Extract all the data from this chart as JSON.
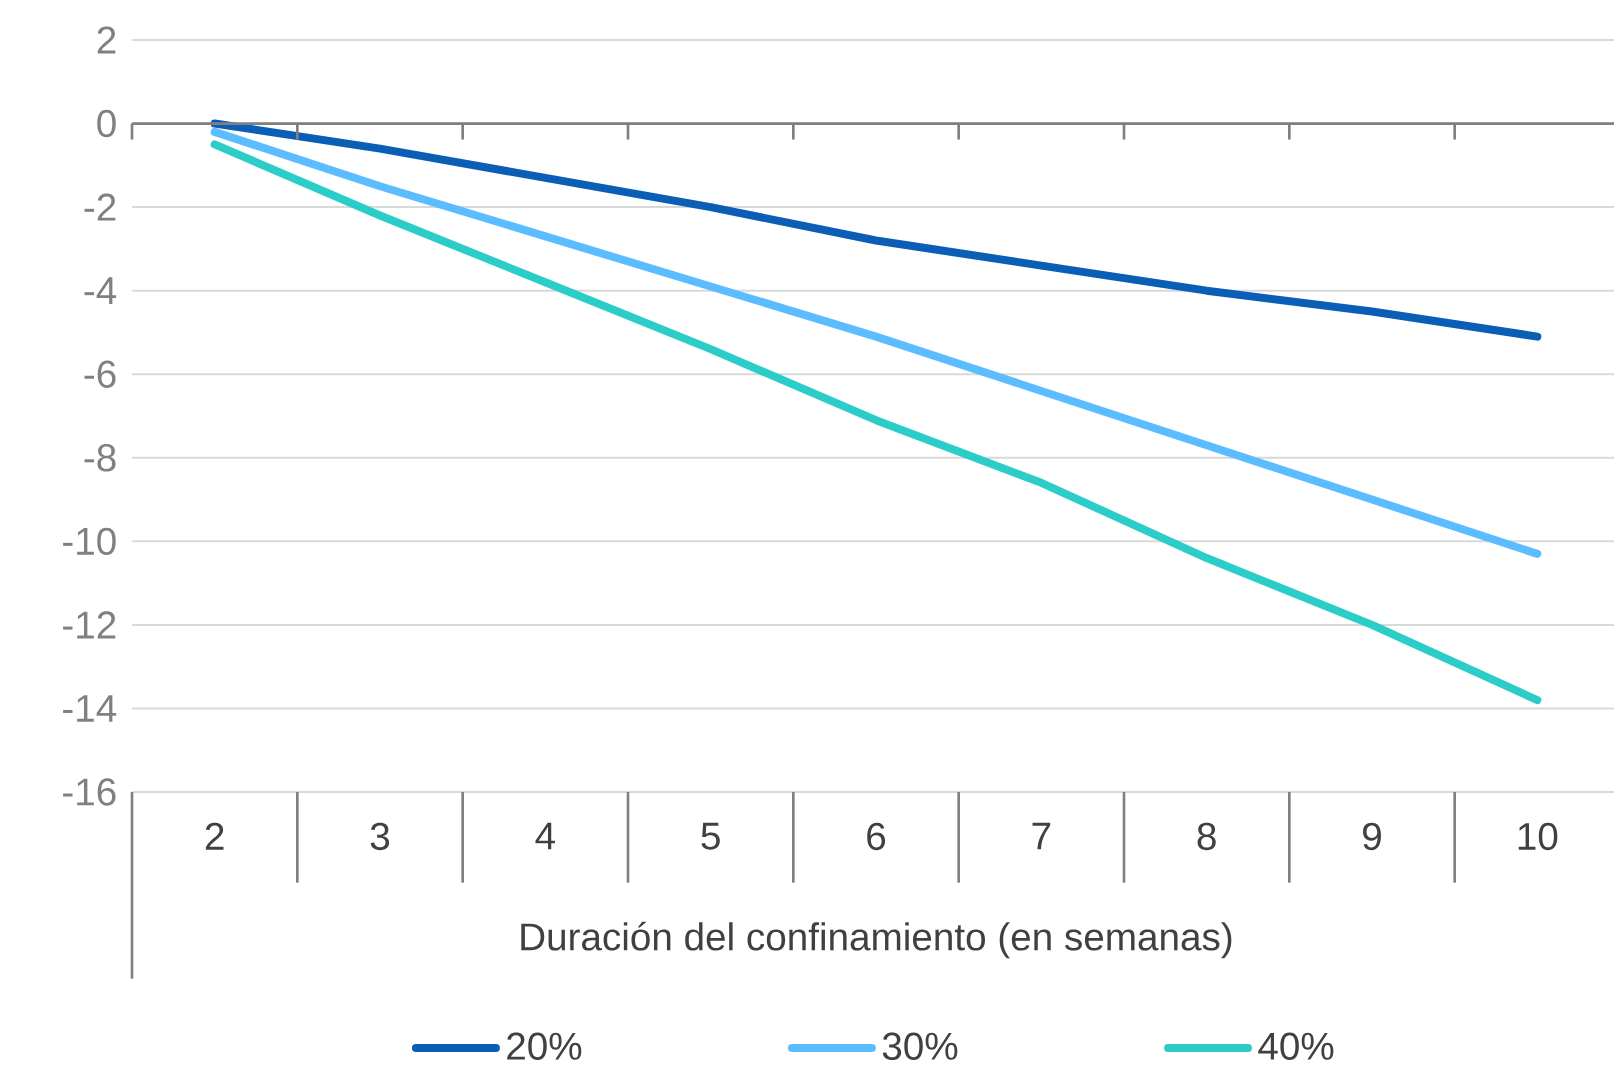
{
  "chart_data": {
    "type": "line",
    "xlabel": "Duración del confinamiento (en semanas)",
    "categories": [
      "2",
      "3",
      "4",
      "5",
      "6",
      "7",
      "8",
      "9",
      "10"
    ],
    "series": [
      {
        "name": "20%",
        "color": "#0b5eb5",
        "values": [
          0,
          -0.6,
          -1.3,
          -2.0,
          -2.8,
          -3.4,
          -4.0,
          -4.5,
          -5.1
        ]
      },
      {
        "name": "30%",
        "color": "#5bbcff",
        "values": [
          -0.2,
          -1.5,
          -2.7,
          -3.9,
          -5.1,
          -6.4,
          -7.7,
          -9.0,
          -10.3
        ]
      },
      {
        "name": "40%",
        "color": "#2ccdc8",
        "values": [
          -0.5,
          -2.2,
          -3.8,
          -5.4,
          -7.1,
          -8.6,
          -10.4,
          -12.0,
          -13.8
        ]
      }
    ],
    "ylim": [
      -16,
      2
    ],
    "yticks": [
      2,
      0,
      -2,
      -4,
      -6,
      -8,
      -10,
      -12,
      -14,
      -16
    ],
    "grid": "y",
    "legend": "bottom",
    "marker": "none",
    "line_style": "solid"
  }
}
